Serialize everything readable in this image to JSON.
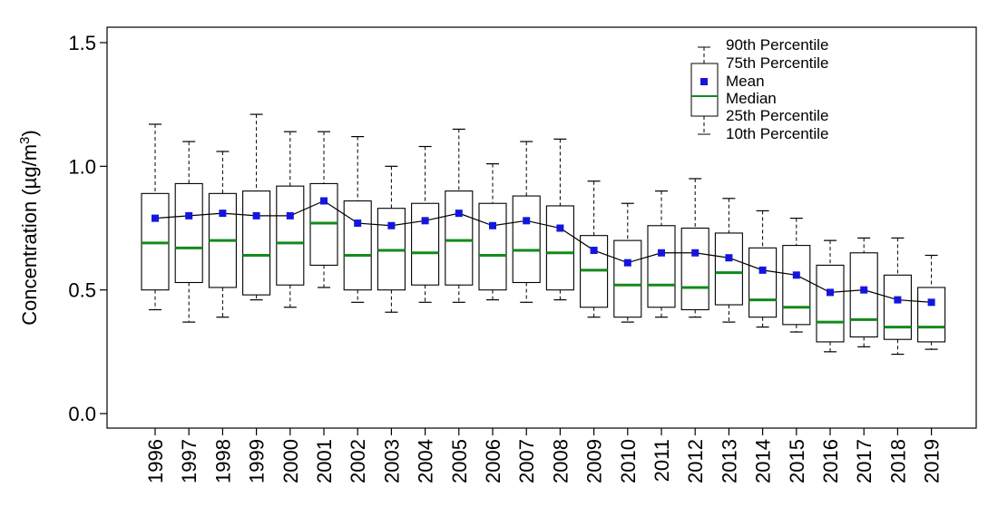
{
  "chart_data": {
    "type": "boxplot",
    "title": "",
    "xlabel": "",
    "ylabel": "Concentration (µg/m³)",
    "ylabel_parts": {
      "main": "Concentration (",
      "unit": "µg/m",
      "sup": "3",
      "close": ")"
    },
    "ylim": [
      -0.05,
      1.55
    ],
    "yticks": [
      0.0,
      0.5,
      1.0,
      1.5
    ],
    "ytick_labels": [
      "0.0",
      "0.5",
      "1.0",
      "1.5"
    ],
    "categories": [
      "1996",
      "1997",
      "1998",
      "1999",
      "2000",
      "2001",
      "2002",
      "2003",
      "2004",
      "2005",
      "2006",
      "2007",
      "2008",
      "2009",
      "2010",
      "2011",
      "2012",
      "2013",
      "2014",
      "2015",
      "2016",
      "2017",
      "2018",
      "2019"
    ],
    "p10": [
      0.42,
      0.37,
      0.39,
      0.46,
      0.43,
      0.51,
      0.45,
      0.41,
      0.45,
      0.45,
      0.46,
      0.45,
      0.46,
      0.39,
      0.37,
      0.39,
      0.39,
      0.37,
      0.35,
      0.33,
      0.25,
      0.27,
      0.24,
      0.26
    ],
    "p25": [
      0.5,
      0.53,
      0.51,
      0.48,
      0.52,
      0.6,
      0.5,
      0.5,
      0.52,
      0.52,
      0.5,
      0.53,
      0.5,
      0.43,
      0.39,
      0.43,
      0.42,
      0.44,
      0.39,
      0.36,
      0.29,
      0.31,
      0.3,
      0.29
    ],
    "median": [
      0.69,
      0.67,
      0.7,
      0.64,
      0.69,
      0.77,
      0.64,
      0.66,
      0.65,
      0.7,
      0.64,
      0.66,
      0.65,
      0.58,
      0.52,
      0.52,
      0.51,
      0.57,
      0.46,
      0.43,
      0.37,
      0.38,
      0.35,
      0.35
    ],
    "mean": [
      0.79,
      0.8,
      0.81,
      0.8,
      0.8,
      0.86,
      0.77,
      0.76,
      0.78,
      0.81,
      0.76,
      0.78,
      0.75,
      0.66,
      0.61,
      0.65,
      0.65,
      0.63,
      0.58,
      0.56,
      0.49,
      0.5,
      0.46,
      0.45
    ],
    "p75": [
      0.89,
      0.93,
      0.89,
      0.9,
      0.92,
      0.93,
      0.86,
      0.83,
      0.85,
      0.9,
      0.85,
      0.88,
      0.84,
      0.72,
      0.7,
      0.76,
      0.75,
      0.73,
      0.67,
      0.68,
      0.6,
      0.65,
      0.56,
      0.51
    ],
    "p90": [
      1.17,
      1.1,
      1.06,
      1.21,
      1.14,
      1.14,
      1.12,
      1.0,
      1.08,
      1.15,
      1.01,
      1.1,
      1.11,
      0.94,
      0.85,
      0.9,
      0.95,
      0.87,
      0.82,
      0.79,
      0.7,
      0.71,
      0.71,
      0.64
    ],
    "colors": {
      "mean": "#1515e0",
      "median": "#138a1b",
      "box": "#000000",
      "line": "#000000"
    },
    "legend": {
      "placement": "top-right",
      "items": [
        "90th Percentile",
        "75th Percentile",
        "Mean",
        "Median",
        "25th Percentile",
        "10th Percentile"
      ]
    }
  }
}
